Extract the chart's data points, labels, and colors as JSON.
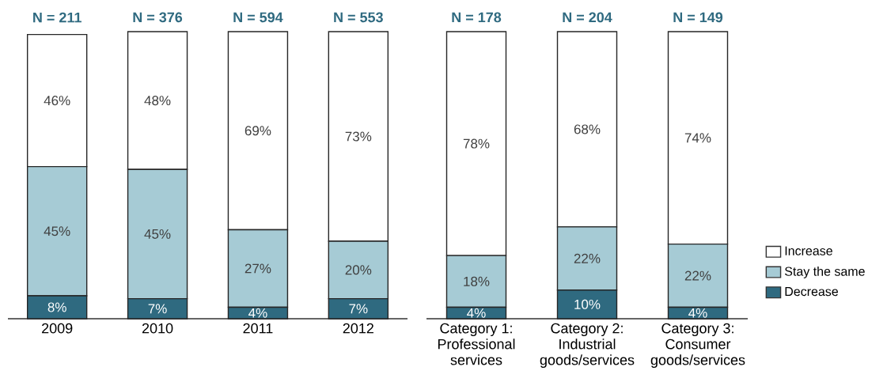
{
  "chart_data": [
    {
      "type": "bar",
      "stacked": true,
      "categories": [
        "2009",
        "2010",
        "2011",
        "2012"
      ],
      "series": [
        {
          "color": "#2f6a80",
          "values": [
            8,
            7,
            4,
            7
          ],
          "value_labels": [
            "8%",
            "7%",
            "4%",
            "7%"
          ]
        },
        {
          "color": "#a6cbd5",
          "values": [
            45,
            45,
            27,
            20
          ],
          "value_labels": [
            "45%",
            "45%",
            "27%",
            "20%"
          ]
        },
        {
          "color": "#ffffff",
          "values": [
            46,
            48,
            69,
            73
          ],
          "value_labels": [
            "46%",
            "48%",
            "69%",
            "73%"
          ]
        }
      ],
      "annotations": [
        "N = 211",
        "N = 376",
        "N = 594",
        "N = 553"
      ]
    },
    {
      "type": "bar",
      "stacked": true,
      "categories": [
        "Category 1: Professional services",
        "Category 2: Industrial goods/services",
        "Category 3: Consumer goods/services"
      ],
      "series": [
        {
          "name": "Decrease",
          "color": "#2f6a80",
          "values": [
            4,
            10,
            4
          ],
          "value_labels": [
            "4%",
            "10%",
            "4%"
          ]
        },
        {
          "name": "Stay the same",
          "color": "#a6cbd5",
          "values": [
            18,
            22,
            22
          ],
          "value_labels": [
            "18%",
            "22%",
            "22%"
          ]
        },
        {
          "name": "Increase",
          "color": "#ffffff",
          "values": [
            78,
            68,
            74
          ],
          "value_labels": [
            "78%",
            "68%",
            "74%"
          ]
        }
      ],
      "annotations": [
        "N = 178",
        "N = 204",
        "N = 149"
      ],
      "legend": "right"
    }
  ]
}
